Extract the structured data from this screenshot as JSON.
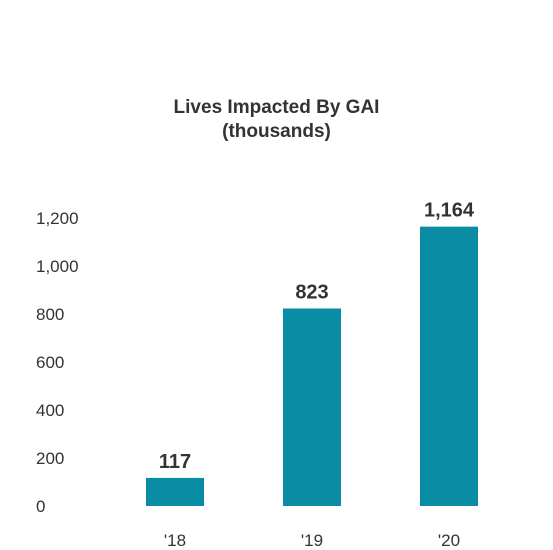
{
  "chart_data": {
    "type": "bar",
    "title": "Lives Impacted By GAI",
    "subtitle": "(thousands)",
    "categories": [
      "'18",
      "'19",
      "'20"
    ],
    "values": [
      117,
      823,
      1164
    ],
    "value_labels": [
      "117",
      "823",
      "1,164"
    ],
    "y_ticks": [
      "0",
      "200",
      "400",
      "600",
      "800",
      "1,000",
      "1,200"
    ],
    "ylim": [
      0,
      1200
    ],
    "grid": false,
    "legend": "none",
    "bar_color": "#0A8CA5"
  }
}
